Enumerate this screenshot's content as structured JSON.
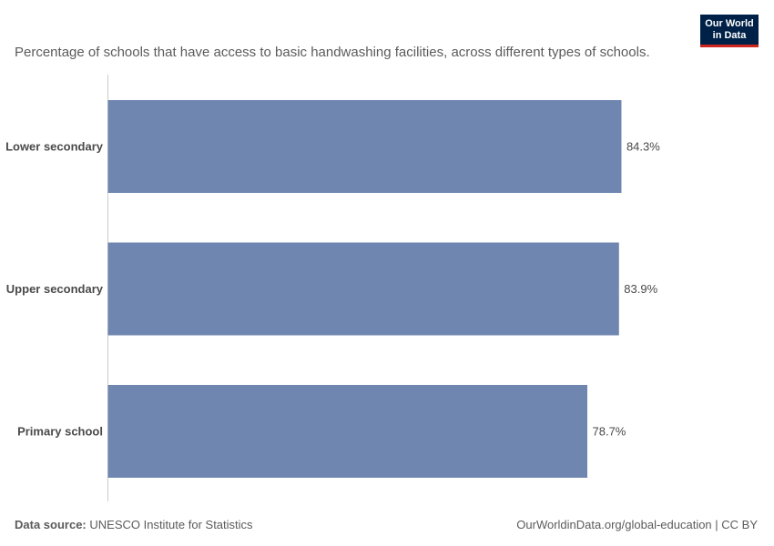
{
  "logo": {
    "line1": "Our World",
    "line2": "in Data"
  },
  "subtitle": "Percentage of schools that have access to basic handwashing facilities, across different types of schools.",
  "chart_data": {
    "type": "bar",
    "orientation": "horizontal",
    "categories": [
      "Lower secondary",
      "Upper secondary",
      "Primary school"
    ],
    "values": [
      84.3,
      83.9,
      78.7
    ],
    "value_labels": [
      "84.3%",
      "83.9%",
      "78.7%"
    ],
    "bar_color": "#6f87b0",
    "xlim": [
      0,
      100
    ],
    "grid": false,
    "title": "",
    "xlabel": "",
    "ylabel": ""
  },
  "footer": {
    "source_label": "Data source:",
    "source_value": "UNESCO Institute for Statistics",
    "url": "OurWorldinData.org/global-education | CC BY"
  }
}
